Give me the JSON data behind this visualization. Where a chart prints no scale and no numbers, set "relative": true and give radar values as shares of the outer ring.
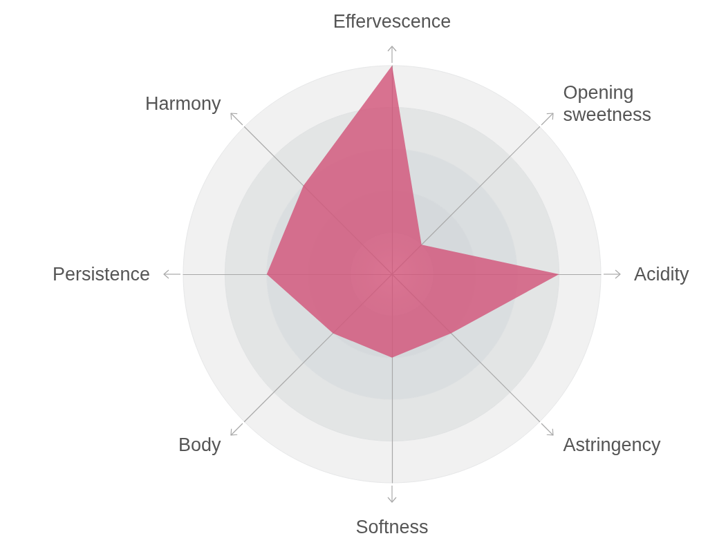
{
  "chart_data": {
    "type": "radar",
    "relative": true,
    "categories": [
      "Effervescence",
      "Opening\nsweetness",
      "Acidity",
      "Astringency",
      "Softness",
      "Body",
      "Persistence",
      "Harmony"
    ],
    "series": [
      {
        "color": "#d2557a",
        "values": [
          1,
          0.2,
          0.8,
          0.4,
          0.4,
          0.4,
          0.6,
          0.6
        ]
      }
    ],
    "grid": true,
    "marker": "none"
  }
}
